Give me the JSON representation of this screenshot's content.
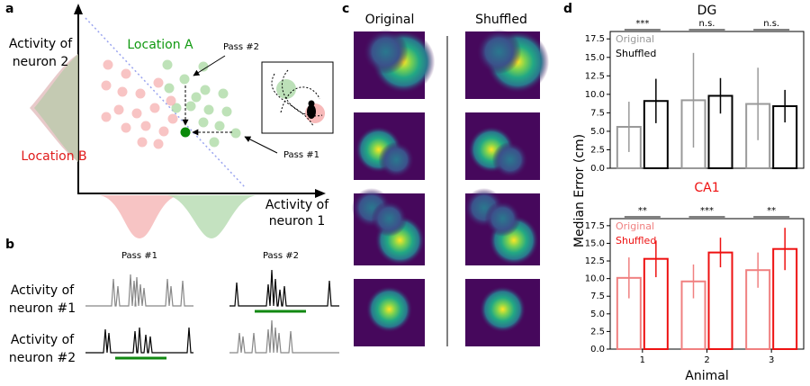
{
  "panels": {
    "a": {
      "letter": "a",
      "y_label": [
        "Activity of",
        "neuron 2"
      ],
      "x_label": [
        "Activity of",
        "neuron 1"
      ],
      "location_a": "Location A",
      "location_b": "Location B",
      "pass_2": "Pass #2",
      "pass_1": "Pass #1"
    },
    "b": {
      "letter": "b",
      "columns": [
        "Pass #1",
        "Pass #2"
      ],
      "rows": [
        [
          "Activity of",
          "neuron #1"
        ],
        [
          "Activity of",
          "neuron #2"
        ]
      ]
    },
    "c": {
      "letter": "c",
      "columns": [
        "Original",
        "Shuffled"
      ]
    },
    "d": {
      "letter": "d"
    }
  },
  "chart_data": [
    {
      "type": "bar",
      "title": "DG",
      "ylim": [
        0,
        18.5
      ],
      "yticks": [
        {
          "value": 0,
          "label": "0.0"
        },
        2.5,
        {
          "value": 5,
          "label": "5.0"
        },
        7.5,
        {
          "value": 10,
          "label": "10.0"
        },
        12.5,
        {
          "value": 15,
          "label": "15.0"
        },
        17.5
      ],
      "series": [
        {
          "name": "Original",
          "color": "#999999",
          "values": [
            5.6,
            9.2,
            8.7
          ],
          "errors": [
            3.4,
            6.4,
            4.9
          ]
        },
        {
          "name": "Shuffled",
          "color": "#000000",
          "values": [
            9.1,
            9.8,
            8.4
          ],
          "errors": [
            3.0,
            2.4,
            2.2
          ]
        }
      ],
      "annotations": [
        "***",
        "n.s.",
        "n.s."
      ],
      "title_color": "#000000"
    },
    {
      "type": "bar",
      "title": "CA1",
      "x_label": "Animal",
      "y_label": "Median Error (cm)",
      "categories": [
        "1",
        "2",
        "3"
      ],
      "ylim": [
        0,
        18.5
      ],
      "yticks": [
        {
          "value": 0,
          "label": "0.0"
        },
        2.5,
        {
          "value": 5,
          "label": "5.0"
        },
        7.5,
        {
          "value": 10,
          "label": "10.0"
        },
        12.5,
        {
          "value": 15,
          "label": "15.0"
        },
        17.5
      ],
      "series": [
        {
          "name": "Original",
          "color": "#f08080",
          "values": [
            10.1,
            9.6,
            11.2
          ],
          "errors": [
            2.9,
            2.4,
            2.5
          ]
        },
        {
          "name": "Shuffled",
          "color": "#ee1111",
          "values": [
            12.8,
            13.7,
            14.2
          ],
          "errors": [
            2.6,
            2.1,
            3.0
          ]
        }
      ],
      "annotations": [
        "**",
        "***",
        "**"
      ],
      "title_color": "#ee1111"
    }
  ]
}
